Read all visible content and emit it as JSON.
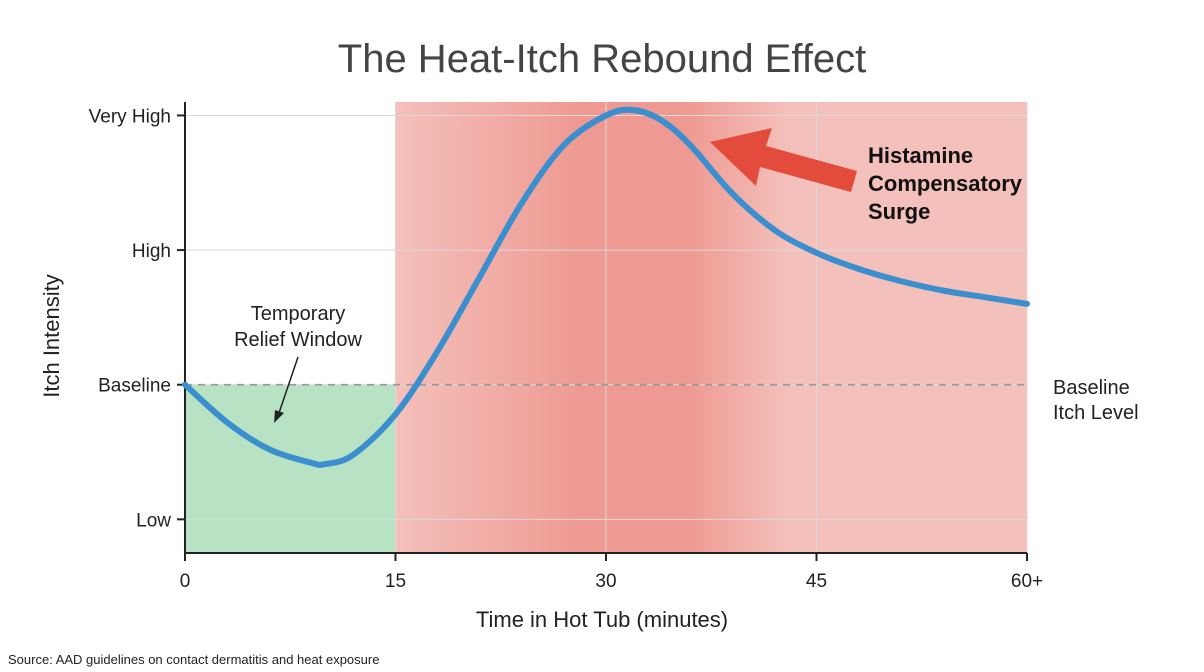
{
  "chart_data": {
    "type": "line",
    "title": "The Heat-Itch Rebound Effect",
    "xlabel": "Time in Hot Tub (minutes)",
    "ylabel": "Itch Intensity",
    "x_ticks": [
      "0",
      "15",
      "30",
      "45",
      "60+"
    ],
    "x_tick_values": [
      0,
      15,
      30,
      45,
      60
    ],
    "y_ticks": [
      "Low",
      "Baseline",
      "High",
      "Very High"
    ],
    "y_tick_values": [
      0,
      1,
      2,
      3
    ],
    "xlim": [
      0,
      60
    ],
    "ylim": [
      -0.25,
      3.1
    ],
    "grid": true,
    "series": [
      {
        "x": [
          0,
          3,
          6,
          9,
          10,
          12,
          15,
          18,
          21,
          24,
          27,
          30,
          32,
          34,
          36,
          39,
          42,
          45,
          48,
          51,
          54,
          57,
          60
        ],
        "y": [
          1.0,
          0.72,
          0.52,
          0.42,
          0.41,
          0.48,
          0.78,
          1.25,
          1.8,
          2.35,
          2.78,
          3.0,
          3.04,
          2.96,
          2.78,
          2.42,
          2.15,
          1.98,
          1.86,
          1.77,
          1.7,
          1.65,
          1.6
        ]
      }
    ],
    "regions": [
      {
        "x_start": 0,
        "x_end": 15,
        "color": "#b7e3c4"
      },
      {
        "x_start": 15,
        "x_end": 60,
        "color": "#f4c0bb",
        "gradient_color": "#ee9991"
      }
    ],
    "baseline": {
      "y": 1,
      "label_line1": "Baseline",
      "label_line2": "Itch Level"
    },
    "annotations": {
      "relief_line1": "Temporary",
      "relief_line2": "Relief Window",
      "surge_line1": "Histamine",
      "surge_line2": "Compensatory",
      "surge_line3": "Surge"
    },
    "source": "Source: AAD guidelines on contact dermatitis and heat exposure",
    "colors": {
      "line": "#3b8fcf",
      "relief": "#b7e3c4",
      "rebound": "#f4c0bb",
      "rebound_peak": "#ee9991",
      "arrow": "#e34b3d",
      "grid": "#d9d9d9",
      "baseline": "#9a9a9a"
    }
  }
}
